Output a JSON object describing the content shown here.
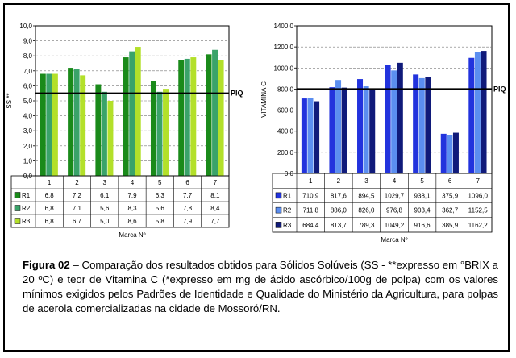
{
  "chart_data": [
    {
      "type": "bar",
      "ylabel": "SS **",
      "xlabel": "Marca Nº",
      "ylim": [
        0,
        10
      ],
      "yticks": [
        "0,0",
        "1,0",
        "2,0",
        "3,0",
        "4,0",
        "5,0",
        "6,0",
        "7,0",
        "8,0",
        "9,0",
        "10,0"
      ],
      "categories": [
        "1",
        "2",
        "3",
        "4",
        "5",
        "6",
        "7"
      ],
      "threshold": {
        "label": "PIQ",
        "value": 5.5
      },
      "series": [
        {
          "name": "R1",
          "color": "#1a8a1a",
          "values": [
            6.8,
            7.2,
            6.1,
            7.9,
            6.3,
            7.7,
            8.1
          ],
          "labels": [
            "6,8",
            "7,2",
            "6,1",
            "7,9",
            "6,3",
            "7,7",
            "8,1"
          ]
        },
        {
          "name": "R2",
          "color": "#3aa36a",
          "values": [
            6.8,
            7.1,
            5.6,
            8.3,
            5.6,
            7.8,
            8.4
          ],
          "labels": [
            "6,8",
            "7,1",
            "5,6",
            "8,3",
            "5,6",
            "7,8",
            "8,4"
          ]
        },
        {
          "name": "R3",
          "color": "#b3e02a",
          "values": [
            6.8,
            6.7,
            5.0,
            8.6,
            5.8,
            7.9,
            7.7
          ],
          "labels": [
            "6,8",
            "6,7",
            "5,0",
            "8,6",
            "5,8",
            "7,9",
            "7,7"
          ]
        }
      ]
    },
    {
      "type": "bar",
      "ylabel": "VITAMINA C",
      "xlabel": "Marca Nº",
      "ylim": [
        0,
        1400
      ],
      "yticks": [
        "0,0",
        "200,0",
        "400,0",
        "600,0",
        "800,0",
        "1000,0",
        "1200,0",
        "1400,0"
      ],
      "categories": [
        "1",
        "2",
        "3",
        "4",
        "5",
        "6",
        "7"
      ],
      "threshold": {
        "label": "PIQ",
        "value": 800
      },
      "series": [
        {
          "name": "R1",
          "color": "#2233dd",
          "values": [
            710.9,
            817.6,
            894.5,
            1029.7,
            938.1,
            375.9,
            1096.0
          ],
          "labels": [
            "710,9",
            "817,6",
            "894,5",
            "1029,7",
            "938,1",
            "375,9",
            "1096,0"
          ]
        },
        {
          "name": "R2",
          "color": "#5b8ef0",
          "values": [
            711.8,
            886.0,
            826.0,
            976.8,
            903.4,
            362.7,
            1152.5
          ],
          "labels": [
            "711,8",
            "886,0",
            "826,0",
            "976,8",
            "903,4",
            "362,7",
            "1152,5"
          ]
        },
        {
          "name": "R3",
          "color": "#101a7a",
          "values": [
            684.4,
            813.7,
            789.3,
            1049.2,
            916.6,
            385.9,
            1162.2
          ],
          "labels": [
            "684,4",
            "813,7",
            "789,3",
            "1049,2",
            "916,6",
            "385,9",
            "1162,2"
          ]
        }
      ]
    }
  ],
  "caption": {
    "label": "Figura 02",
    "text": " – Comparação dos resultados obtidos para Sólidos Solúveis (SS - **expresso em °BRIX a 20 ºC) e teor de Vitamina C (*expresso em mg de ácido ascórbico/100g de polpa) com os valores mínimos exigidos pelos Padrões de Identidade e Qualidade do Ministério da Agricultura, para polpas de acerola comercializadas na cidade de Mossoró/RN."
  }
}
